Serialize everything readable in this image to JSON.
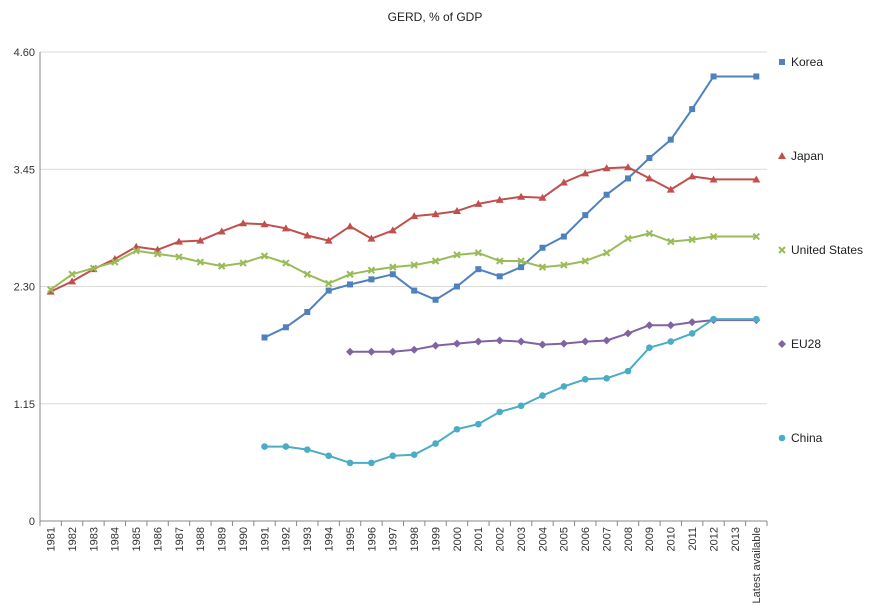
{
  "chart_data": {
    "type": "line",
    "title": "GERD, % of GDP",
    "categories": [
      "1981",
      "1982",
      "1983",
      "1984",
      "1985",
      "1986",
      "1987",
      "1988",
      "1989",
      "1990",
      "1991",
      "1992",
      "1993",
      "1994",
      "1995",
      "1996",
      "1997",
      "1998",
      "1999",
      "2000",
      "2001",
      "2002",
      "2003",
      "2004",
      "2005",
      "2006",
      "2007",
      "2008",
      "2009",
      "2010",
      "2011",
      "2012",
      "2013",
      "Latest available"
    ],
    "y_ticks": [
      "0",
      "1.15",
      "2.30",
      "3.45",
      "4.60"
    ],
    "ylim": [
      0,
      4.6
    ],
    "grid": "horizontal",
    "legend_position": "right",
    "series": [
      {
        "name": "Korea",
        "color": "#4f81bd",
        "marker": "square",
        "values": [
          null,
          null,
          null,
          null,
          null,
          null,
          null,
          null,
          null,
          null,
          1.8,
          1.9,
          2.05,
          2.26,
          2.32,
          2.37,
          2.42,
          2.26,
          2.17,
          2.3,
          2.47,
          2.4,
          2.49,
          2.68,
          2.79,
          3.0,
          3.2,
          3.36,
          3.56,
          3.74,
          4.04,
          4.36,
          null,
          4.36
        ]
      },
      {
        "name": "Japan",
        "color": "#c0504d",
        "marker": "triangle",
        "values": [
          2.25,
          2.35,
          2.47,
          2.57,
          2.69,
          2.66,
          2.74,
          2.75,
          2.84,
          2.92,
          2.91,
          2.87,
          2.8,
          2.75,
          2.89,
          2.77,
          2.85,
          2.99,
          3.01,
          3.04,
          3.11,
          3.15,
          3.18,
          3.17,
          3.32,
          3.41,
          3.46,
          3.47,
          3.36,
          3.25,
          3.38,
          3.35,
          null,
          3.35
        ]
      },
      {
        "name": "United States",
        "color": "#9bbb59",
        "marker": "x",
        "values": [
          2.27,
          2.42,
          2.48,
          2.54,
          2.65,
          2.62,
          2.59,
          2.54,
          2.5,
          2.53,
          2.6,
          2.53,
          2.42,
          2.33,
          2.42,
          2.46,
          2.49,
          2.51,
          2.55,
          2.61,
          2.63,
          2.55,
          2.55,
          2.49,
          2.51,
          2.55,
          2.63,
          2.77,
          2.82,
          2.74,
          2.76,
          2.79,
          null,
          2.79
        ]
      },
      {
        "name": "EU28",
        "color": "#8064a2",
        "marker": "diamond",
        "values": [
          null,
          null,
          null,
          null,
          null,
          null,
          null,
          null,
          null,
          null,
          null,
          null,
          null,
          null,
          1.66,
          1.66,
          1.66,
          1.68,
          1.72,
          1.74,
          1.76,
          1.77,
          1.76,
          1.73,
          1.74,
          1.76,
          1.77,
          1.84,
          1.92,
          1.92,
          1.95,
          1.97,
          null,
          1.97
        ]
      },
      {
        "name": "China",
        "color": "#4bacc6",
        "marker": "circle",
        "values": [
          null,
          null,
          null,
          null,
          null,
          null,
          null,
          null,
          null,
          null,
          0.73,
          0.73,
          0.7,
          0.64,
          0.57,
          0.57,
          0.64,
          0.65,
          0.76,
          0.9,
          0.95,
          1.07,
          1.13,
          1.23,
          1.32,
          1.39,
          1.4,
          1.47,
          1.7,
          1.76,
          1.84,
          1.98,
          null,
          1.98
        ]
      }
    ]
  }
}
